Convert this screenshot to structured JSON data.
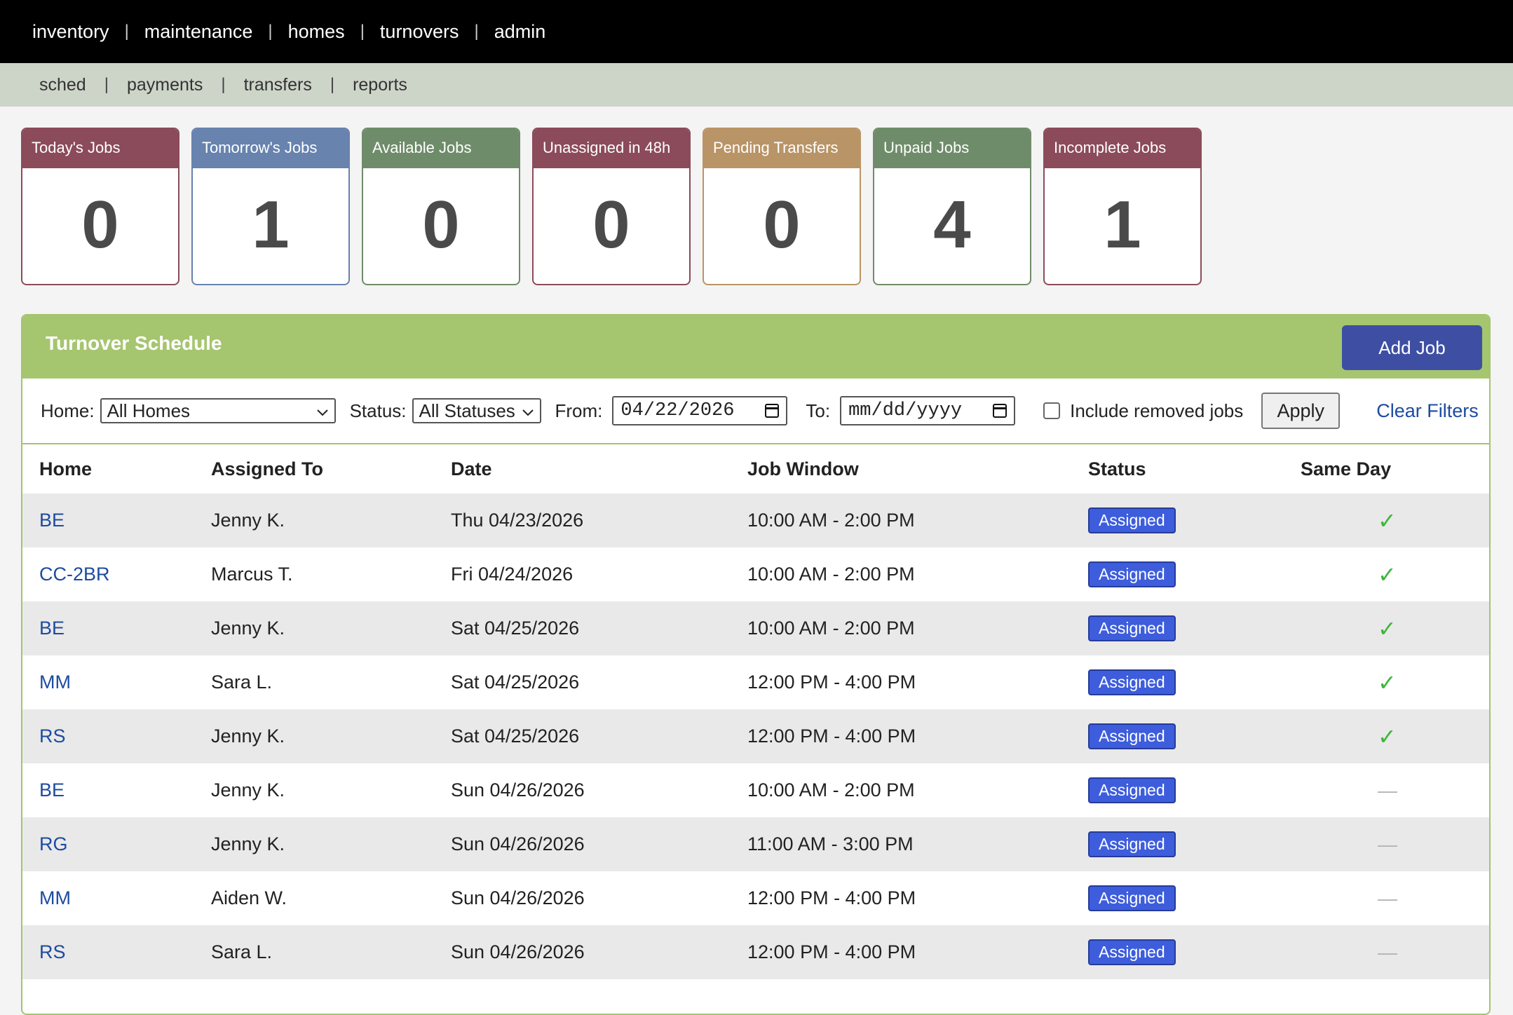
{
  "nav": {
    "top": [
      "inventory",
      "maintenance",
      "homes",
      "turnovers",
      "admin"
    ],
    "sub": [
      "sched",
      "payments",
      "transfers",
      "reports"
    ]
  },
  "cards": [
    {
      "label": "Today's Jobs",
      "value": "0",
      "color": "#8b4b5a"
    },
    {
      "label": "Tomorrow's Jobs",
      "value": "1",
      "color": "#6783ae"
    },
    {
      "label": "Available Jobs",
      "value": "0",
      "color": "#6f8c6a"
    },
    {
      "label": "Unassigned in 48h",
      "value": "0",
      "color": "#8b4b5a"
    },
    {
      "label": "Pending Transfers",
      "value": "0",
      "color": "#b99466"
    },
    {
      "label": "Unpaid Jobs",
      "value": "4",
      "color": "#6f8c6a"
    },
    {
      "label": "Incomplete Jobs",
      "value": "1",
      "color": "#8b4b5a"
    }
  ],
  "schedule": {
    "title": "Turnover Schedule",
    "add_label": "Add Job",
    "filters": {
      "home_label": "Home:",
      "home_value": "All Homes",
      "status_label": "Status:",
      "status_value": "All Statuses",
      "from_label": "From:",
      "from_value": "04/22/2026",
      "to_label": "To:",
      "to_placeholder": "mm/dd/yyyy",
      "include_removed_label": "Include removed jobs",
      "apply_label": "Apply",
      "clear_label": "Clear Filters"
    },
    "columns": [
      "Home",
      "Assigned To",
      "Date",
      "Job Window",
      "Status",
      "Same Day"
    ],
    "rows": [
      {
        "home": "BE",
        "assigned": "Jenny K.",
        "date": "Thu 04/23/2026",
        "window": "10:00 AM - 2:00 PM",
        "status": "Assigned",
        "same_day": true
      },
      {
        "home": "CC-2BR",
        "assigned": "Marcus T.",
        "date": "Fri 04/24/2026",
        "window": "10:00 AM - 2:00 PM",
        "status": "Assigned",
        "same_day": true
      },
      {
        "home": "BE",
        "assigned": "Jenny K.",
        "date": "Sat 04/25/2026",
        "window": "10:00 AM - 2:00 PM",
        "status": "Assigned",
        "same_day": true
      },
      {
        "home": "MM",
        "assigned": "Sara L.",
        "date": "Sat 04/25/2026",
        "window": "12:00 PM - 4:00 PM",
        "status": "Assigned",
        "same_day": true
      },
      {
        "home": "RS",
        "assigned": "Jenny K.",
        "date": "Sat 04/25/2026",
        "window": "12:00 PM - 4:00 PM",
        "status": "Assigned",
        "same_day": true
      },
      {
        "home": "BE",
        "assigned": "Jenny K.",
        "date": "Sun 04/26/2026",
        "window": "10:00 AM - 2:00 PM",
        "status": "Assigned",
        "same_day": false
      },
      {
        "home": "RG",
        "assigned": "Jenny K.",
        "date": "Sun 04/26/2026",
        "window": "11:00 AM - 3:00 PM",
        "status": "Assigned",
        "same_day": false
      },
      {
        "home": "MM",
        "assigned": "Aiden W.",
        "date": "Sun 04/26/2026",
        "window": "12:00 PM - 4:00 PM",
        "status": "Assigned",
        "same_day": false
      },
      {
        "home": "RS",
        "assigned": "Sara L.",
        "date": "Sun 04/26/2026",
        "window": "12:00 PM - 4:00 PM",
        "status": "Assigned",
        "same_day": false
      }
    ],
    "same_day_yes": "✓",
    "same_day_no": "—"
  }
}
